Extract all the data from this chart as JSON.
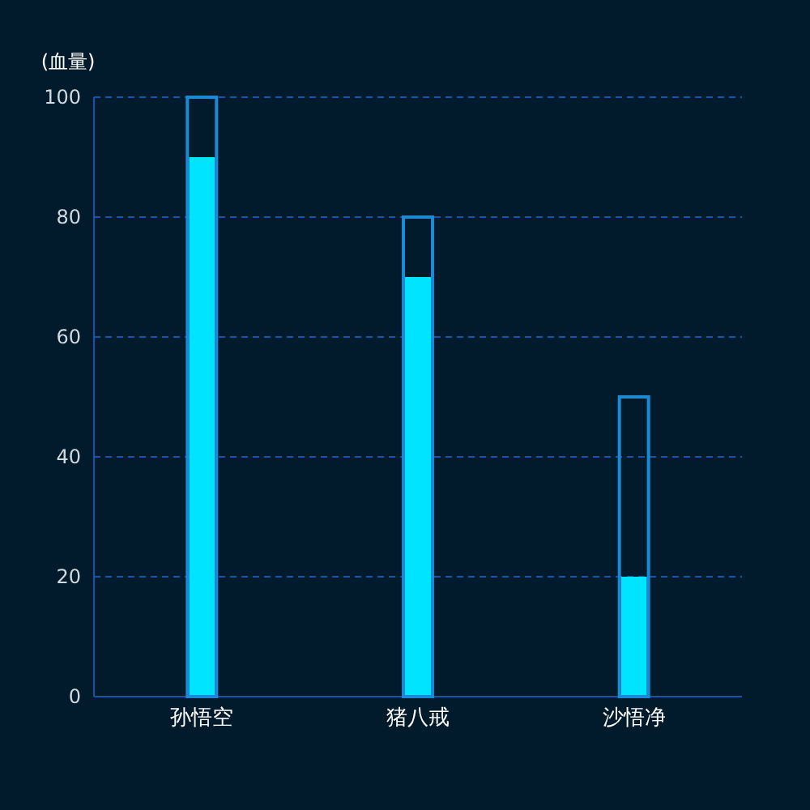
{
  "chart_data": {
    "type": "bar",
    "ylabel": "(血量)",
    "categories": [
      "孙悟空",
      "猪八戒",
      "沙悟净"
    ],
    "series": [
      {
        "color": "#1a8ad4",
        "values": [
          100,
          80,
          50
        ]
      },
      {
        "color": "#00e4ff",
        "values": [
          90,
          70,
          20
        ]
      }
    ],
    "ylim": [
      0,
      100
    ],
    "yticks": [
      0,
      20,
      40,
      60,
      80,
      100
    ],
    "grid": "y",
    "line_style": "dashed"
  }
}
